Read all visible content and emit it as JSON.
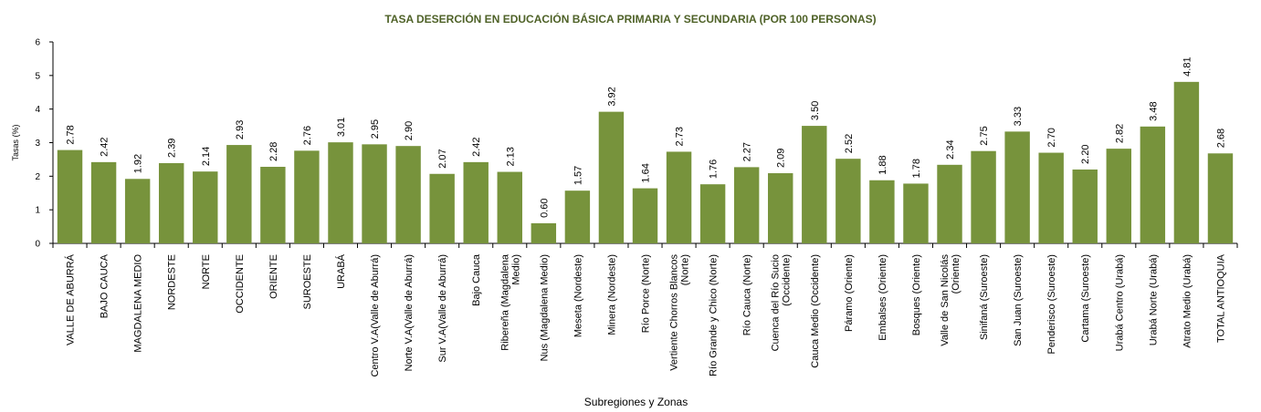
{
  "chart_data": {
    "type": "bar",
    "title": "TASA DESERCIÓN EN EDUCACIÓN BÁSICA PRIMARIA Y SECUNDARIA (POR 100 PERSONAS)",
    "xlabel": "Subregiones y Zonas",
    "ylabel": "Tasas (%)",
    "ylim": [
      0,
      6
    ],
    "yticks": [
      "0",
      "1",
      "2",
      "3",
      "4",
      "5",
      "6"
    ],
    "grid": false,
    "bar_color": "#77933c",
    "title_color": "#4f6228",
    "categories": [
      [
        "VALLE DE ABURRÁ"
      ],
      [
        "BAJO CAUCA"
      ],
      [
        "MAGDALENA MEDIO"
      ],
      [
        "NORDESTE"
      ],
      [
        "NORTE"
      ],
      [
        "OCCIDENTE"
      ],
      [
        "ORIENTE"
      ],
      [
        "SUROESTE"
      ],
      [
        "URABÁ"
      ],
      [
        "Centro V.A(Valle de Aburrá)"
      ],
      [
        "Norte V.A(Valle de Aburrá)"
      ],
      [
        "Sur  V.A(Valle de Aburrá)"
      ],
      [
        "Bajo Cauca"
      ],
      [
        "Ribereña  (Magdalena",
        "Medio)"
      ],
      [
        "Nus  (Magdalena Medio)"
      ],
      [
        "Meseta  (Nordeste)"
      ],
      [
        "Minera  (Nordeste)"
      ],
      [
        "Río Porce    (Norte)"
      ],
      [
        "Vertiente Chorros Blancos",
        "(Norte)"
      ],
      [
        "Río Grande y Chico  (Norte)"
      ],
      [
        "Río Cauca  (Norte)"
      ],
      [
        "Cuenca del Río Sucio",
        "(Occidente)"
      ],
      [
        "Cauca Medio  (Occidente)"
      ],
      [
        "Páramo  (Oriente)"
      ],
      [
        "Embalses  (Oriente)"
      ],
      [
        "Bosques  (Oriente)"
      ],
      [
        "Valle de San Nicolás",
        "(Oriente)"
      ],
      [
        "Sinifaná  (Suroeste)"
      ],
      [
        "San Juan  (Suroeste)"
      ],
      [
        "Penderisco  (Suroeste)"
      ],
      [
        "Cartama  (Suroeste)"
      ],
      [
        "Urabá Centro  (Urabá)"
      ],
      [
        "Urabá Norte  (Urabá)"
      ],
      [
        "Atrato Medio  (Urabá)"
      ],
      [
        "TOTAL ANTIOQUIA"
      ]
    ],
    "values": [
      2.78,
      2.42,
      1.92,
      2.39,
      2.14,
      2.93,
      2.28,
      2.76,
      3.01,
      2.95,
      2.9,
      2.07,
      2.42,
      2.13,
      0.6,
      1.57,
      3.92,
      1.64,
      2.73,
      1.76,
      2.27,
      2.09,
      3.5,
      2.52,
      1.88,
      1.78,
      2.34,
      2.75,
      3.33,
      2.7,
      2.2,
      2.82,
      3.48,
      4.81,
      2.68
    ],
    "value_labels": [
      "2.78",
      "2.42",
      "1.92",
      "2.39",
      "2.14",
      "2.93",
      "2.28",
      "2.76",
      "3.01",
      "2.95",
      "2.90",
      "2.07",
      "2.42",
      "2.13",
      "0.60",
      "1.57",
      "3.92",
      "1.64",
      "2.73",
      "1.76",
      "2.27",
      "2.09",
      "3.50",
      "2.52",
      "1.88",
      "1.78",
      "2.34",
      "2.75",
      "3.33",
      "2.70",
      "2.20",
      "2.82",
      "3.48",
      "4.81",
      "2.68"
    ]
  }
}
